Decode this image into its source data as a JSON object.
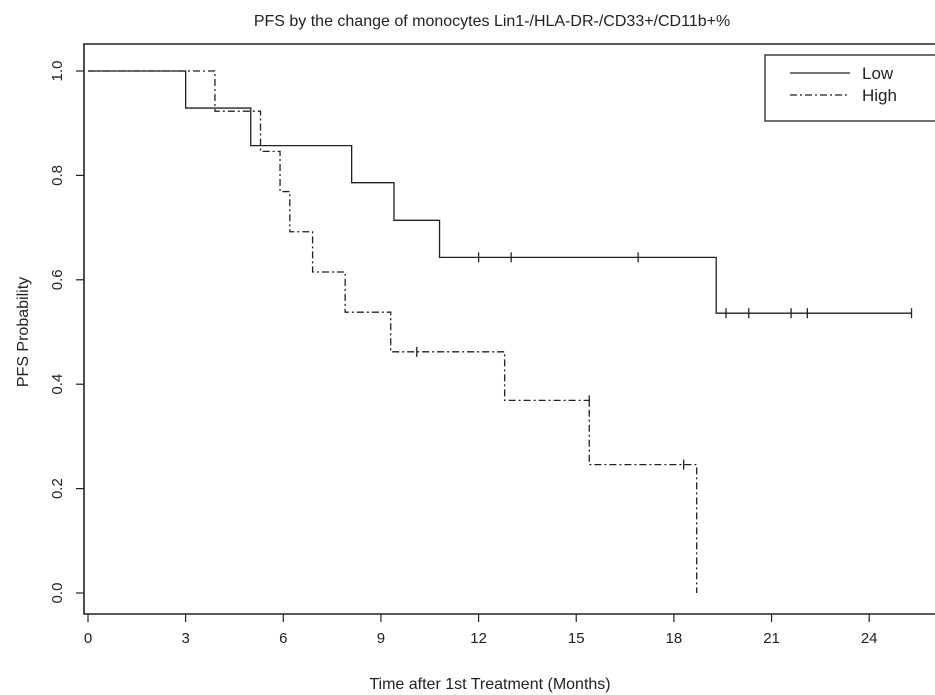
{
  "chart_data": {
    "type": "line",
    "subtype": "kaplan-meier-step",
    "title": "PFS by the change of monocytes Lin1-/HLA-DR-/CD33+/CD11b+%",
    "xlabel": "Time after 1st Treatment (Months)",
    "ylabel": "PFS Probability",
    "xlim": [
      0,
      26
    ],
    "ylim": [
      0,
      1.0
    ],
    "xticks": [
      0,
      3,
      6,
      9,
      12,
      15,
      18,
      21,
      24
    ],
    "xtick_labels": [
      "0",
      "3",
      "6",
      "9",
      "12",
      "15",
      "18",
      "21",
      "24"
    ],
    "yticks": [
      0.0,
      0.2,
      0.4,
      0.6,
      0.8,
      1.0
    ],
    "ytick_labels": [
      "0.0",
      "0.2",
      "0.4",
      "0.6",
      "0.8",
      "1.0"
    ],
    "grid": false,
    "legend_position": "top-right",
    "series": [
      {
        "name": "Low",
        "line_style": "solid",
        "steps": [
          {
            "x": 0,
            "y": 1.0
          },
          {
            "x": 3.0,
            "y": 0.929
          },
          {
            "x": 5.0,
            "y": 0.857
          },
          {
            "x": 8.1,
            "y": 0.786
          },
          {
            "x": 9.4,
            "y": 0.714
          },
          {
            "x": 10.8,
            "y": 0.643
          },
          {
            "x": 19.3,
            "y": 0.536
          }
        ],
        "end_x": 25.3,
        "censored": [
          {
            "x": 12.0,
            "y": 0.643
          },
          {
            "x": 13.0,
            "y": 0.643
          },
          {
            "x": 16.9,
            "y": 0.643
          },
          {
            "x": 19.6,
            "y": 0.536
          },
          {
            "x": 20.3,
            "y": 0.536
          },
          {
            "x": 21.6,
            "y": 0.536
          },
          {
            "x": 22.1,
            "y": 0.536
          },
          {
            "x": 25.3,
            "y": 0.536
          }
        ]
      },
      {
        "name": "High",
        "line_style": "dash-dot",
        "steps": [
          {
            "x": 0,
            "y": 1.0
          },
          {
            "x": 3.9,
            "y": 0.923
          },
          {
            "x": 5.3,
            "y": 0.846
          },
          {
            "x": 5.9,
            "y": 0.769
          },
          {
            "x": 6.2,
            "y": 0.692
          },
          {
            "x": 6.9,
            "y": 0.615
          },
          {
            "x": 7.9,
            "y": 0.538
          },
          {
            "x": 9.3,
            "y": 0.462
          },
          {
            "x": 12.8,
            "y": 0.369
          },
          {
            "x": 15.4,
            "y": 0.246
          },
          {
            "x": 18.7,
            "y": 0.0
          }
        ],
        "end_x": 18.7,
        "censored": [
          {
            "x": 10.1,
            "y": 0.462
          },
          {
            "x": 15.4,
            "y": 0.369
          },
          {
            "x": 18.3,
            "y": 0.246
          }
        ]
      }
    ]
  },
  "colors": {
    "line": "#222222",
    "axis": "#222222",
    "background": "#ffffff"
  }
}
